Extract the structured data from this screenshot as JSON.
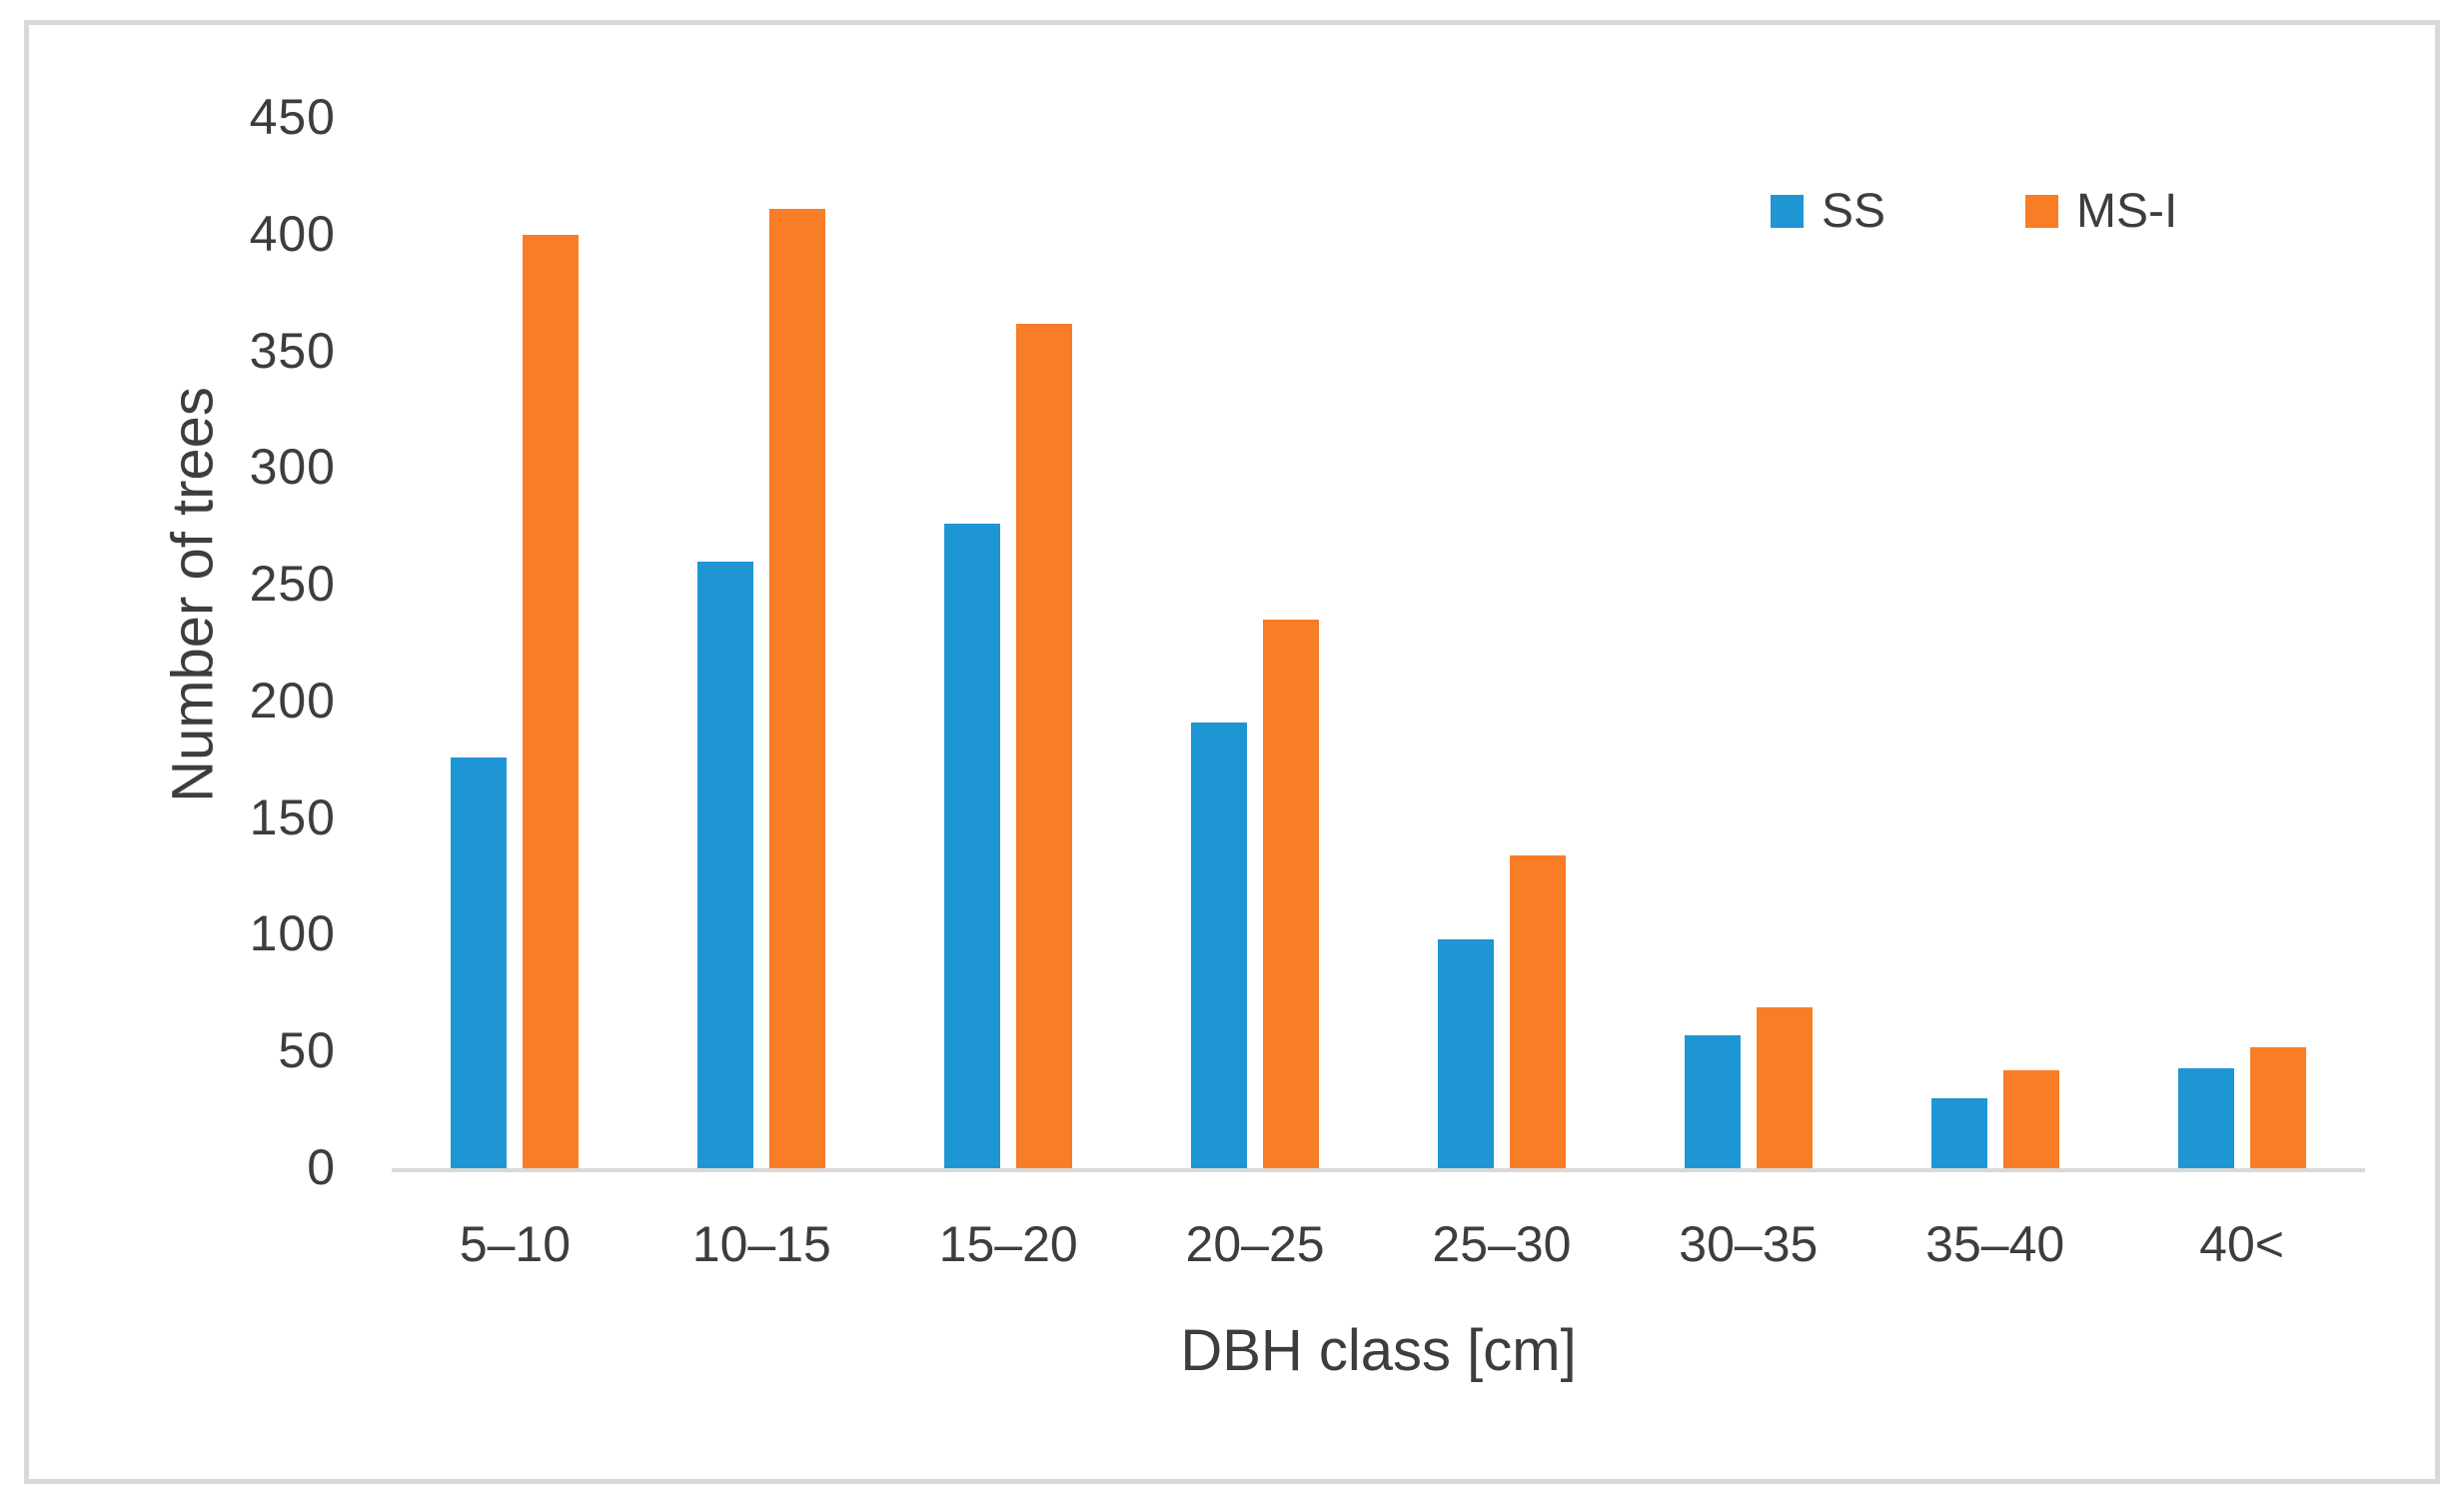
{
  "figure": {
    "frame_border_color": "#d9d9d9",
    "background": "#ffffff",
    "text_color": "#3d3d3d"
  },
  "chart_data": {
    "type": "bar",
    "title": "",
    "categories": [
      "5–10",
      "10–15",
      "15–20",
      "20–25",
      "25–30",
      "30–35",
      "35–40",
      "40<"
    ],
    "series": [
      {
        "name": "SS",
        "color": "#1f96d4",
        "values": [
          176,
          260,
          276,
          191,
          98,
          57,
          30,
          43
        ]
      },
      {
        "name": "MS-I",
        "color": "#f87d26",
        "values": [
          400,
          411,
          362,
          235,
          134,
          69,
          42,
          52
        ]
      }
    ],
    "xlabel": "DBH class [cm]",
    "ylabel": "Number of trees",
    "ylim": [
      0,
      450
    ],
    "yticks": [
      0,
      50,
      100,
      150,
      200,
      250,
      300,
      350,
      400,
      450
    ],
    "grid": false,
    "legend_position": "top-right",
    "axis_line_color": "#d9d9d9"
  }
}
